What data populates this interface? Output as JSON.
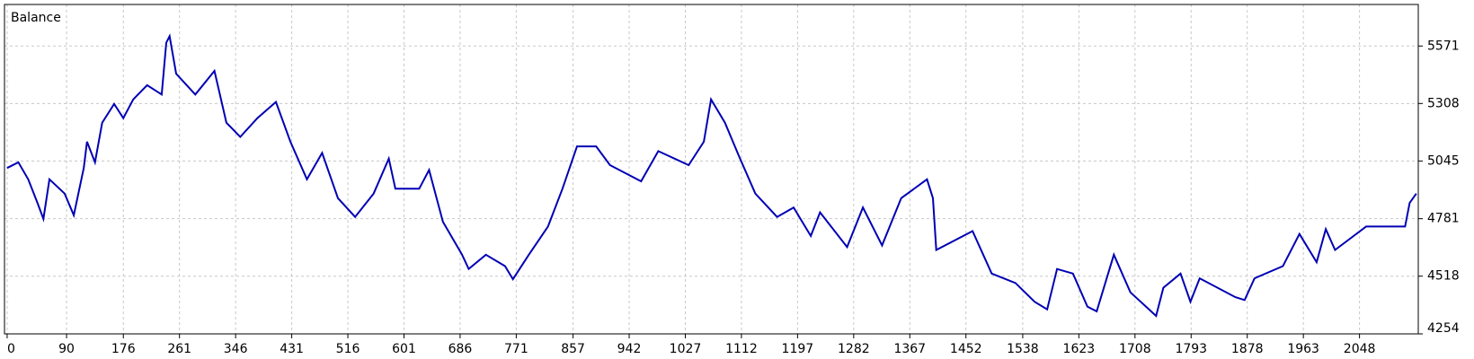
{
  "chart_data": {
    "type": "line",
    "title": "Balance",
    "x": [
      0,
      17,
      32,
      46,
      55,
      64,
      87,
      101,
      116,
      121,
      133,
      144,
      162,
      176,
      191,
      212,
      234,
      241,
      246,
      256,
      285,
      314,
      332,
      353,
      379,
      407,
      429,
      454,
      477,
      501,
      527,
      555,
      578,
      588,
      624,
      639,
      660,
      689,
      699,
      725,
      754,
      766,
      790,
      819,
      841,
      863,
      892,
      913,
      960,
      986,
      1032,
      1055,
      1066,
      1087,
      1108,
      1133,
      1166,
      1191,
      1217,
      1231,
      1272,
      1296,
      1325,
      1354,
      1393,
      1402,
      1407,
      1462,
      1491,
      1527,
      1556,
      1575,
      1590,
      1614,
      1636,
      1650,
      1676,
      1701,
      1740,
      1751,
      1777,
      1792,
      1806,
      1860,
      1874,
      1889,
      1932,
      1957,
      1983,
      1997,
      2011,
      2058,
      2091,
      2117,
      2124,
      2134
    ],
    "series": [
      {
        "name": "Balance",
        "color": "#0000b4",
        "values": [
          5013,
          5039,
          4961,
          4853,
          4780,
          4961,
          4896,
          4797,
          5013,
          5133,
          5039,
          5220,
          5306,
          5241,
          5327,
          5392,
          5349,
          5586,
          5616,
          5444,
          5349,
          5457,
          5220,
          5155,
          5241,
          5315,
          5133,
          4961,
          5082,
          4875,
          4789,
          4896,
          5056,
          4918,
          4918,
          5004,
          4767,
          4616,
          4551,
          4616,
          4564,
          4504,
          4616,
          4745,
          4918,
          5112,
          5112,
          5026,
          4952,
          5090,
          5026,
          5133,
          5327,
          5220,
          5069,
          4896,
          4789,
          4832,
          4702,
          4810,
          4651,
          4832,
          4659,
          4875,
          4961,
          4875,
          4638,
          4724,
          4530,
          4487,
          4401,
          4366,
          4551,
          4530,
          4379,
          4357,
          4616,
          4444,
          4336,
          4465,
          4530,
          4401,
          4508,
          4422,
          4409,
          4508,
          4564,
          4711,
          4582,
          4733,
          4638,
          4745,
          4745,
          4745,
          4853,
          4896
        ]
      }
    ],
    "xlim": [
      -4,
      2137
    ],
    "xticks": [
      0,
      90,
      176,
      261,
      346,
      431,
      516,
      601,
      686,
      771,
      857,
      942,
      1027,
      1112,
      1197,
      1282,
      1367,
      1452,
      1538,
      1623,
      1708,
      1793,
      1878,
      1963,
      2048
    ],
    "ylim": [
      4254,
      5761
    ],
    "yticks": [
      4254,
      4518,
      4781,
      5045,
      5308,
      5571
    ],
    "grid": true
  }
}
